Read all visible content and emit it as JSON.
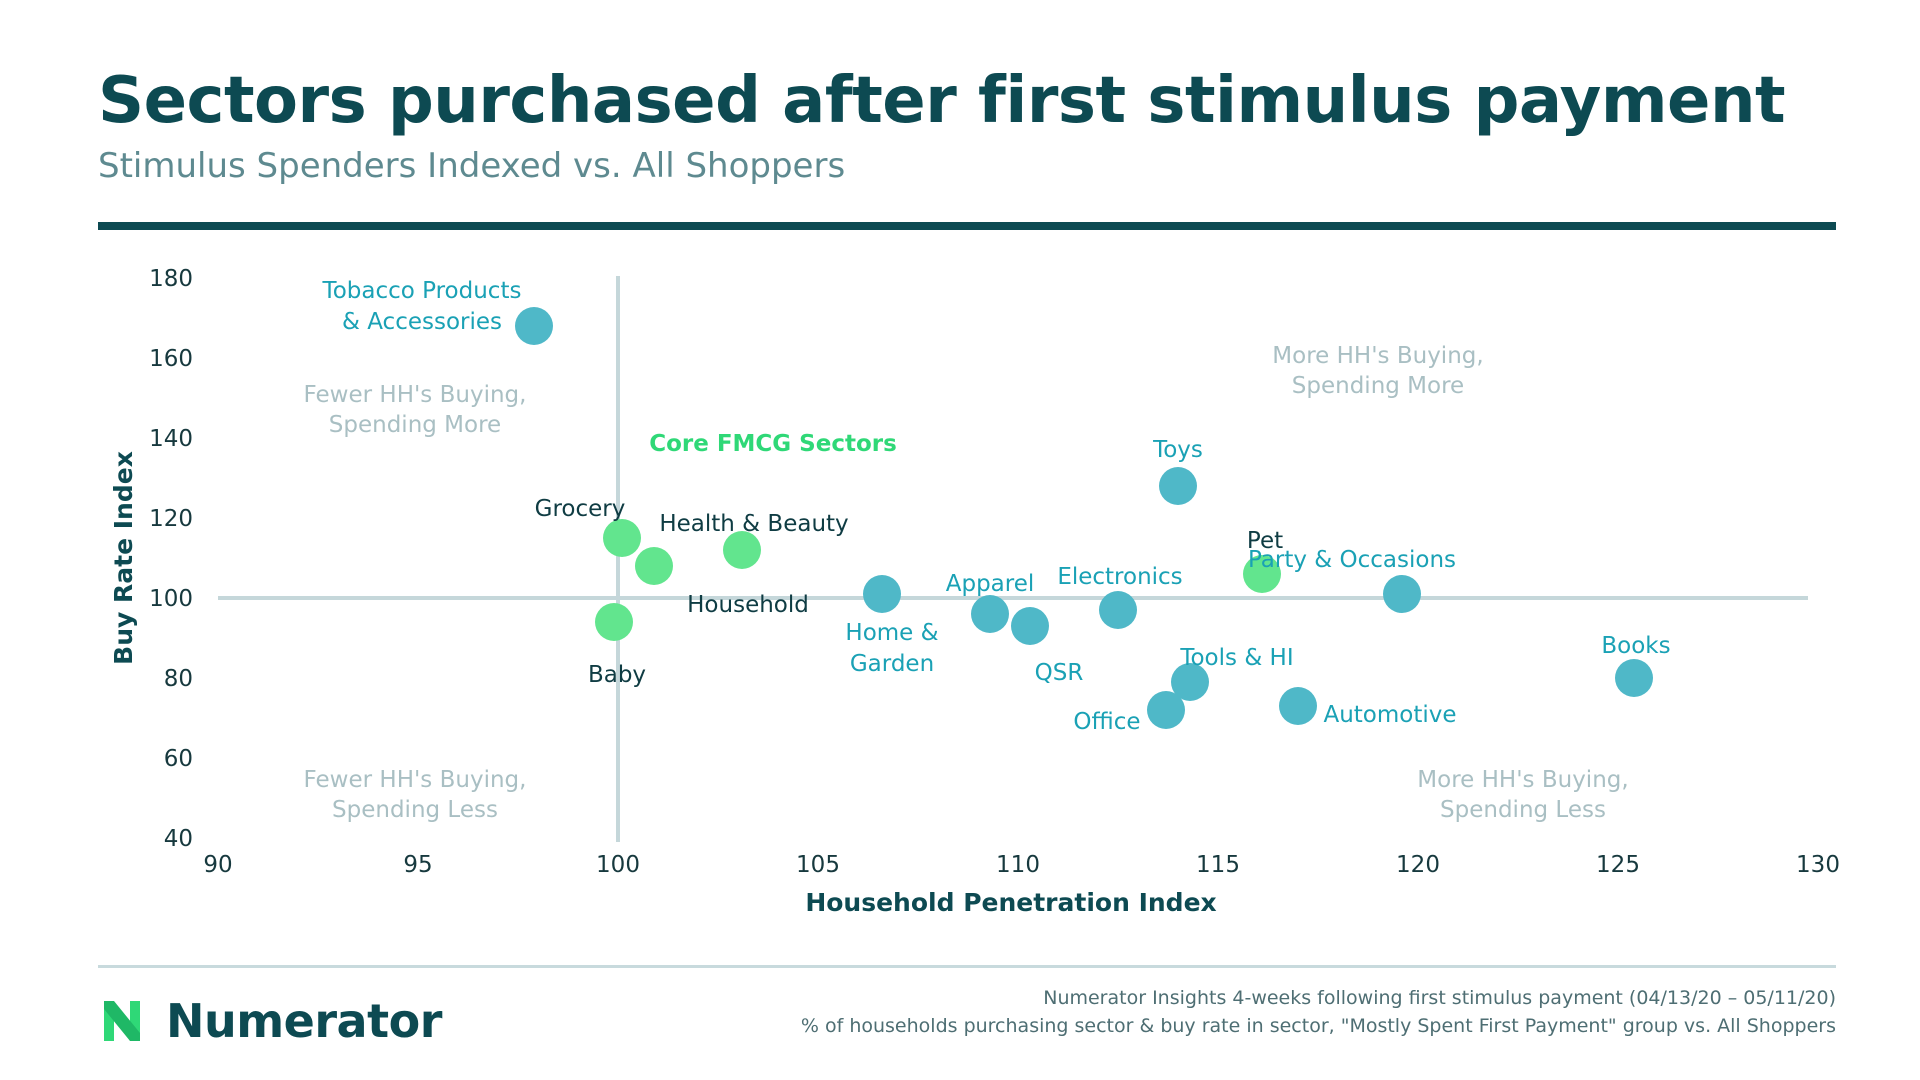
{
  "title": "Sectors purchased after first stimulus payment",
  "subtitle": "Stimulus Spenders Indexed vs. All Shoppers",
  "colors": {
    "dark_teal": "#0d4a52",
    "teal_dot": "#4fb8c8",
    "green_dot": "#62e58e",
    "teal_label": "#1aa1b5",
    "dark_label": "#0f3c43",
    "green_label": "#2fd877",
    "quadrant_text": "#a9bfc3",
    "ref_line": "#c5d7da",
    "axis_text": "#17393e"
  },
  "chart_data": {
    "type": "scatter",
    "xlabel": "Household Penetration Index",
    "ylabel": "Buy Rate Index",
    "xlim": [
      90,
      130
    ],
    "ylim": [
      40,
      180
    ],
    "xticks": [
      "90",
      "95",
      "100",
      "105",
      "110",
      "115",
      "120",
      "125",
      "130"
    ],
    "yticks": [
      "40",
      "60",
      "80",
      "100",
      "120",
      "140",
      "160",
      "180"
    ],
    "reference_lines": {
      "x": 100,
      "y": 100
    },
    "annotation": "Core FMCG Sectors",
    "quadrant_labels": [
      {
        "position": "top-left",
        "lines": [
          "Fewer HH's Buying,",
          "Spending More"
        ]
      },
      {
        "position": "top-right",
        "lines": [
          "More HH's Buying,",
          "Spending More"
        ]
      },
      {
        "position": "bottom-left",
        "lines": [
          "Fewer HH's Buying,",
          "Spending Less"
        ]
      },
      {
        "position": "bottom-right",
        "lines": [
          "More HH's Buying,",
          "Spending Less"
        ]
      }
    ],
    "points": [
      {
        "label": "Tobacco Products\n& Accessories",
        "x": 97.9,
        "y": 168,
        "group": "other"
      },
      {
        "label": "Grocery",
        "x": 100.1,
        "y": 115,
        "group": "core"
      },
      {
        "label": "Household",
        "x": 100.9,
        "y": 108,
        "group": "core"
      },
      {
        "label": "Health & Beauty",
        "x": 103.1,
        "y": 112,
        "group": "core"
      },
      {
        "label": "Baby",
        "x": 99.9,
        "y": 94,
        "group": "core"
      },
      {
        "label": "Home &\nGarden",
        "x": 106.6,
        "y": 101,
        "group": "other"
      },
      {
        "label": "Apparel",
        "x": 109.3,
        "y": 96,
        "group": "other"
      },
      {
        "label": "QSR",
        "x": 110.3,
        "y": 93,
        "group": "other"
      },
      {
        "label": "Electronics",
        "x": 112.5,
        "y": 97,
        "group": "other"
      },
      {
        "label": "Toys",
        "x": 114.0,
        "y": 128,
        "group": "other"
      },
      {
        "label": "Tools & HI",
        "x": 114.3,
        "y": 79,
        "group": "other"
      },
      {
        "label": "Office",
        "x": 113.7,
        "y": 72,
        "group": "other"
      },
      {
        "label": "Pet",
        "x": 116.1,
        "y": 106,
        "group": "core"
      },
      {
        "label": "Automotive",
        "x": 117.0,
        "y": 73,
        "group": "other"
      },
      {
        "label": "Party & Occasions",
        "x": 119.6,
        "y": 101,
        "group": "other"
      },
      {
        "label": "Books",
        "x": 125.4,
        "y": 80,
        "group": "other"
      }
    ]
  },
  "brand": {
    "name": "Numerator"
  },
  "source_lines": [
    "Numerator Insights 4-weeks following first stimulus payment (04/13/20 – 05/11/20)",
    "% of households purchasing sector & buy rate in sector, \"Mostly Spent First Payment\" group vs. All Shoppers"
  ]
}
